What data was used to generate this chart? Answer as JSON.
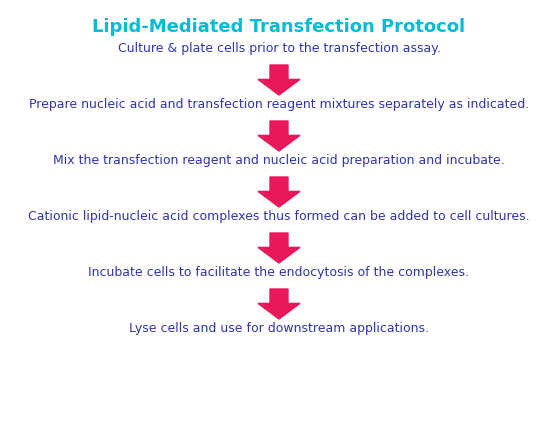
{
  "title": "Lipid-Mediated Transfection Protocol",
  "title_color": "#00BCD4",
  "title_fontsize": 13,
  "steps": [
    "Culture & plate cells prior to the transfection assay.",
    "Prepare nucleic acid and transfection reagent mixtures separately as indicated.",
    "Mix the transfection reagent and nucleic acid preparation and incubate.",
    "Cationic lipid-nucleic acid complexes thus formed can be added to cell cultures.",
    "Incubate cells to facilitate the endocytosis of the complexes.",
    "Lyse cells and use for downstream applications."
  ],
  "step_color": "#3333AA",
  "step_fontsize": 9.0,
  "arrow_color": "#E8185A",
  "background_color": "#FFFFFF",
  "fig_width": 5.58,
  "fig_height": 4.21,
  "dpi": 100
}
